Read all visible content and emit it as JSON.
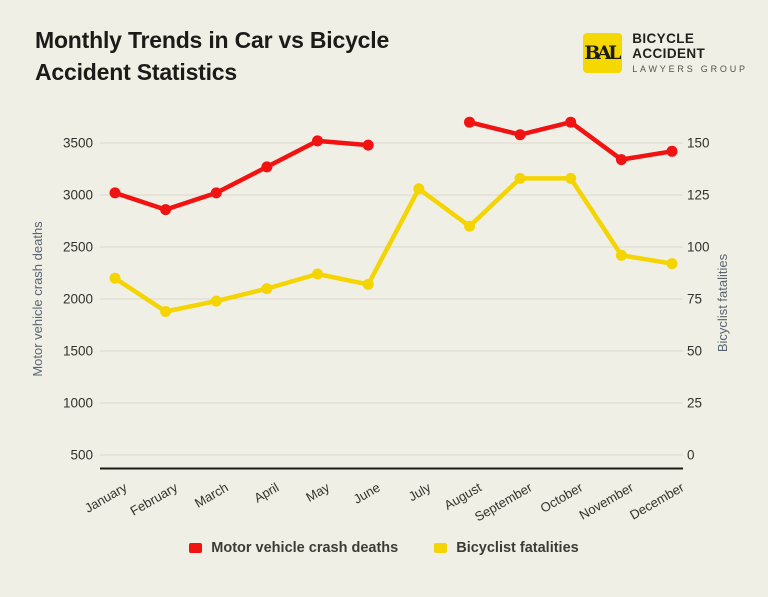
{
  "header": {
    "title_line1": "Monthly Trends in Car vs Bicycle",
    "title_line2": "Accident Statistics",
    "logo": {
      "monogram": "BAL",
      "name": "BICYCLE ACCIDENT",
      "tagline": "LAWYERS GROUP"
    }
  },
  "chart_data": {
    "type": "line",
    "title": "Monthly Trends in Car vs Bicycle Accident Statistics",
    "categories": [
      "January",
      "February",
      "March",
      "April",
      "May",
      "June",
      "July",
      "August",
      "September",
      "October",
      "November",
      "December"
    ],
    "series": [
      {
        "name": "Motor vehicle crash deaths",
        "axis": "left",
        "color": "#f11212",
        "values": [
          3020,
          2860,
          3020,
          3270,
          3520,
          3480,
          null,
          3700,
          3580,
          3700,
          3340,
          3420
        ]
      },
      {
        "name": "Bicyclist fatalities",
        "axis": "right",
        "color": "#f4d503",
        "values": [
          85,
          69,
          74,
          80,
          87,
          82,
          128,
          110,
          133,
          133,
          96,
          92
        ]
      }
    ],
    "left_axis": {
      "label": "Motor vehicle crash deaths",
      "range": [
        500,
        3500
      ],
      "ticks": [
        3500,
        3000,
        2500,
        2000,
        1500,
        1000,
        500
      ]
    },
    "right_axis": {
      "label": "Bicyclist fatalities",
      "range": [
        0,
        150
      ],
      "ticks": [
        150,
        125,
        100,
        75,
        50,
        25,
        0
      ]
    },
    "legend_position": "bottom",
    "grid": true
  },
  "colors": {
    "background": "#f0efe5",
    "red_series": "#f11212",
    "yellow_series": "#f4d503",
    "logo_square": "#f5d800",
    "gridline": "#dcd8ca",
    "axis_line": "#1c1a16",
    "tick_text": "#33312c",
    "axis_title_text": "#5a6470",
    "title_text": "#1d1b17"
  }
}
